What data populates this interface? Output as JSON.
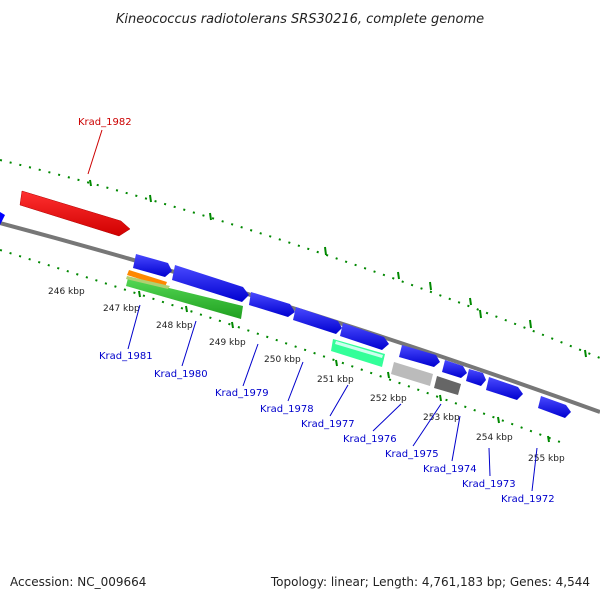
{
  "title": "Kineococcus radiotolerans SRS30216, complete genome",
  "footer": {
    "accession": "Accession: NC_009664",
    "topology": "Topology: linear; Length: 4,761,183 bp; Genes: 4,544"
  },
  "colors": {
    "highlight_gene": "#ff0000",
    "gene_label": "#0000cc",
    "highlight_label": "#cc0000",
    "forward_cds": "#0000ff",
    "gc_ticks": "#008800",
    "backbone": "#808080"
  },
  "scale_labels": [
    "246 kbp",
    "247 kbp",
    "248 kbp",
    "249 kbp",
    "250 kbp",
    "251 kbp",
    "252 kbp",
    "253 kbp",
    "254 kbp",
    "255 kbp"
  ],
  "highlight_label": "Krad_1982",
  "gene_labels": [
    "Krad_1981",
    "Krad_1980",
    "Krad_1979",
    "Krad_1978",
    "Krad_1977",
    "Krad_1976",
    "Krad_1975",
    "Krad_1974",
    "Krad_1973",
    "Krad_1972"
  ]
}
